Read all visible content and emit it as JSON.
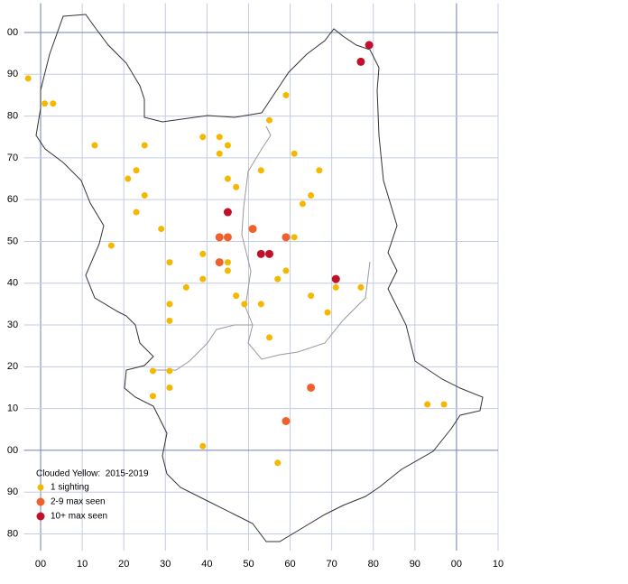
{
  "chart_data": {
    "type": "scatter",
    "legend_title": "Clouded Yellow:  2015-2019",
    "xlim": [
      -4,
      110
    ],
    "ylim": [
      -24,
      107
    ],
    "xticks": [
      {
        "value": 0,
        "label": "00"
      },
      10,
      20,
      30,
      40,
      50,
      60,
      70,
      80,
      90,
      {
        "value": 100,
        "label": "00"
      },
      {
        "value": 110,
        "label": "10"
      }
    ],
    "yticks": [
      {
        "value": 100,
        "label": "00"
      },
      90,
      80,
      70,
      60,
      50,
      40,
      30,
      20,
      10,
      {
        "value": 0,
        "label": "00"
      },
      {
        "value": -10,
        "label": "90"
      },
      {
        "value": -20,
        "label": "80"
      }
    ],
    "grid": true,
    "legend": "bottom-left",
    "series": [
      {
        "name": "1 sighting",
        "color": "#f5b800",
        "x": [
          -3,
          1,
          3,
          13,
          25,
          39,
          43,
          45,
          43,
          55,
          59,
          23,
          21,
          25,
          23,
          45,
          47,
          53,
          61,
          67,
          65,
          63,
          17,
          29,
          31,
          39,
          39,
          45,
          45,
          35,
          31,
          31,
          47,
          49,
          53,
          57,
          59,
          61,
          65,
          69,
          71,
          77,
          55,
          27,
          31,
          27,
          31,
          39,
          57,
          93,
          97
        ],
        "y": [
          89,
          83,
          83,
          73,
          73,
          75,
          75,
          73,
          71,
          79,
          85,
          67,
          65,
          61,
          57,
          65,
          63,
          67,
          71,
          67,
          61,
          59,
          49,
          53,
          45,
          47,
          41,
          45,
          43,
          39,
          35,
          31,
          37,
          35,
          35,
          41,
          43,
          51,
          37,
          33,
          39,
          39,
          27,
          19,
          19,
          13,
          15,
          1,
          -3,
          11,
          11
        ]
      },
      {
        "name": "2-9 max seen",
        "color": "#f0602a",
        "x": [
          45,
          43,
          43,
          51,
          59,
          65,
          59
        ],
        "y": [
          51,
          51,
          45,
          53,
          51,
          15,
          7
        ]
      },
      {
        "name": "10+ max seen",
        "color": "#c0102a",
        "x": [
          79,
          77,
          45,
          53,
          55,
          71
        ],
        "y": [
          97,
          93,
          57,
          47,
          47,
          41
        ]
      }
    ]
  }
}
